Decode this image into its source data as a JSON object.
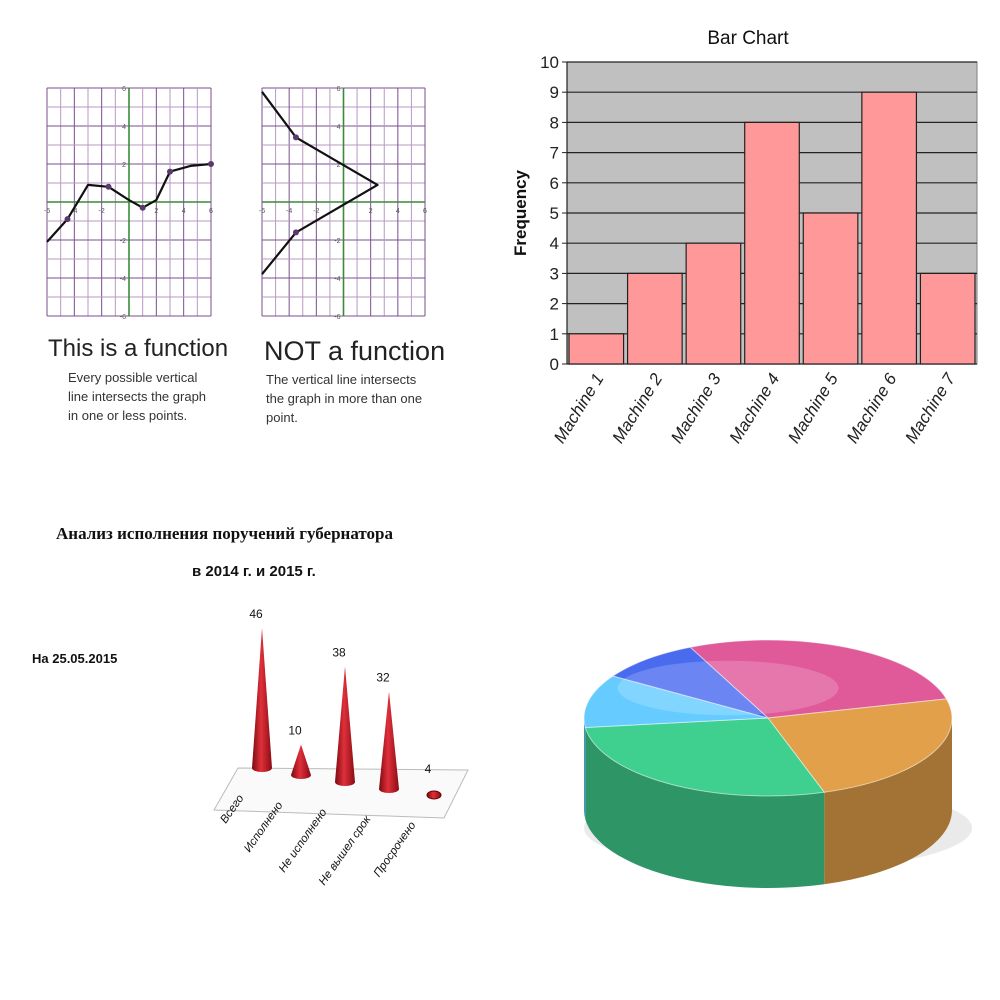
{
  "functions": {
    "left": {
      "title": "This is a function",
      "description": "Every possible vertical\nline intersects the graph\nin one or less points."
    },
    "right": {
      "title": "NOT a function",
      "description": "The vertical line intersects\nthe graph in more than one\npoint."
    },
    "tick_labels": {
      "x": [
        "-6",
        "-4",
        "-2",
        "2",
        "4",
        "6"
      ],
      "y": [
        "6",
        "4",
        "2",
        "-2",
        "-4",
        "-6"
      ]
    }
  },
  "chart_data": [
    {
      "type": "line",
      "x": [
        -6,
        -4.5,
        -3,
        -1.5,
        0,
        1,
        2,
        3,
        4.5,
        6
      ],
      "series": [
        {
          "values": [
            -2.1,
            -0.9,
            0.9,
            0.8,
            0.1,
            -0.3,
            0.1,
            1.6,
            1.9,
            2.0
          ]
        }
      ],
      "xlim": [
        -6,
        6
      ],
      "ylim": [
        -6,
        6
      ],
      "grid": true
    },
    {
      "type": "line",
      "x": [
        -6,
        -3.5,
        2.5,
        -3.5,
        -6
      ],
      "series": [
        {
          "values": [
            5.8,
            3.4,
            0.9,
            -1.6,
            -3.8
          ]
        }
      ],
      "xlim": [
        -6,
        6
      ],
      "ylim": [
        -6,
        6
      ],
      "grid": true
    },
    {
      "type": "bar",
      "title": "Bar Chart",
      "ylabel": "Frequency",
      "categories": [
        "Machine 1",
        "Machine 2",
        "Machine 3",
        "Machine 4",
        "Machine 5",
        "Machine 6",
        "Machine 7"
      ],
      "values": [
        1,
        3,
        4,
        8,
        5,
        9,
        3
      ],
      "ylim": [
        0,
        10
      ],
      "yticks": [
        "0",
        "1",
        "2",
        "3",
        "4",
        "5",
        "6",
        "7",
        "8",
        "9",
        "10"
      ],
      "grid": true,
      "colors": {
        "bar": "#ff9999",
        "background": "#c0c0c0"
      }
    },
    {
      "type": "bar",
      "title": "Анализ исполнения поручений губернатора",
      "subtitle": "в 2014 г. и 2015 г.",
      "annotation": "На 25.05.2015",
      "categories": [
        "Всего",
        "Исполнено",
        "Не исполнено",
        "Не вышел срок",
        "Просрочено"
      ],
      "values": [
        46,
        10,
        38,
        32,
        4
      ],
      "value_labels": [
        "46",
        "10",
        "38",
        "32",
        "4"
      ],
      "colors": {
        "bar": "#cc1a22"
      }
    },
    {
      "type": "pie",
      "slices": [
        {
          "value": 28,
          "color": "#e05a9a"
        },
        {
          "value": 24,
          "color": "#e3a04a"
        },
        {
          "value": 28,
          "color": "#3fcf8e"
        },
        {
          "value": 11,
          "color": "#66ccff"
        },
        {
          "value": 9,
          "color": "#4b6bef"
        }
      ]
    }
  ]
}
